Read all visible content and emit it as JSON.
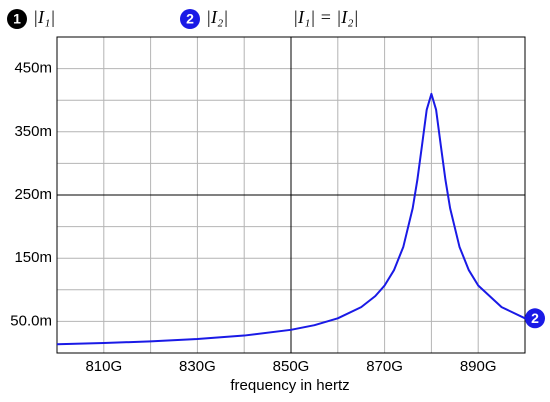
{
  "chart_data": {
    "type": "line",
    "legend_items": [
      {
        "marker": "1",
        "label": "|I₁|",
        "color": "#000000"
      }
    ],
    "annotation": "|I₁| = |I₂|",
    "xlabel": "frequency in hertz",
    "x": [
      800000000000.0,
      810000000000.0,
      820000000000.0,
      830000000000.0,
      840000000000.0,
      850000000000.0,
      855000000000.0,
      860000000000.0,
      865000000000.0,
      868000000000.0,
      870000000000.0,
      872000000000.0,
      874000000000.0,
      876000000000.0,
      877000000000.0,
      878000000000.0,
      879000000000.0,
      880000000000.0,
      881000000000.0,
      882000000000.0,
      883000000000.0,
      884000000000.0,
      886000000000.0,
      888000000000.0,
      890000000000.0,
      895000000000.0,
      900000000000.0
    ],
    "series": [
      {
        "name": "|I₂|",
        "marker": "2",
        "color": "#1a1ae6",
        "values": [
          0.0138,
          0.0158,
          0.0184,
          0.0221,
          0.0276,
          0.0367,
          0.044,
          0.0549,
          0.0726,
          0.09,
          0.1068,
          0.131,
          0.168,
          0.229,
          0.274,
          0.329,
          0.385,
          0.41,
          0.385,
          0.329,
          0.274,
          0.229,
          0.168,
          0.131,
          0.1068,
          0.0726,
          0.0549
        ]
      }
    ],
    "xlim": [
      800000000000.0,
      900000000000.0
    ],
    "xticks": [
      {
        "value": 810000000000.0,
        "label": "810G"
      },
      {
        "value": 830000000000.0,
        "label": "830G"
      },
      {
        "value": 850000000000.0,
        "label": "850G"
      },
      {
        "value": 870000000000.0,
        "label": "870G"
      },
      {
        "value": 890000000000.0,
        "label": "890G"
      }
    ],
    "xgrid": [
      820000000000.0,
      840000000000.0,
      860000000000.0,
      880000000000.0
    ],
    "ylim": [
      0,
      0.5
    ],
    "yticks": [
      {
        "value": 0.05,
        "label": "50.0m"
      },
      {
        "value": 0.15,
        "label": "150m"
      },
      {
        "value": 0.25,
        "label": "250m"
      },
      {
        "value": 0.35,
        "label": "350m"
      },
      {
        "value": 0.45,
        "label": "450m"
      }
    ],
    "ygrid": [
      0.1,
      0.2,
      0.3,
      0.4
    ],
    "center_lines": {
      "x": 850000000000.0,
      "y": 0.25
    },
    "grid": true
  }
}
